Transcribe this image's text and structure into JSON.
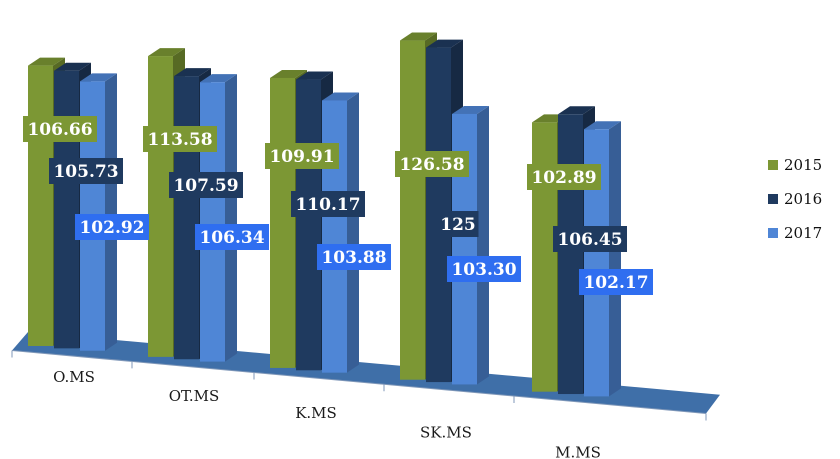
{
  "chart_data": {
    "type": "bar",
    "categories": [
      "O.MS",
      "OT.MS",
      "K.MS",
      "SK.MS",
      "M.MS"
    ],
    "series": [
      {
        "name": "2015",
        "values": [
          106.66,
          113.58,
          109.91,
          126.58,
          102.89
        ],
        "labels": [
          "106.66",
          "113.58",
          "109.91",
          "126.58",
          "102.89"
        ],
        "color": "#7c9734"
      },
      {
        "name": "2016",
        "values": [
          105.73,
          107.59,
          110.17,
          125,
          106.45
        ],
        "labels": [
          "105.73",
          "107.59",
          "110.17",
          "125",
          "106.45"
        ],
        "color": "#1f3a5f"
      },
      {
        "name": "2017",
        "values": [
          102.92,
          106.34,
          103.88,
          103.3,
          102.17
        ],
        "labels": [
          "102.92",
          "106.34",
          "103.88",
          "103.30",
          "102.17"
        ],
        "color": "#4f86d6"
      }
    ],
    "label_colors": [
      "#7c9734",
      "#1f3a5f",
      "#2f6ef0"
    ],
    "ylim": [
      0,
      130
    ],
    "legend_position": "right",
    "grid": false
  }
}
